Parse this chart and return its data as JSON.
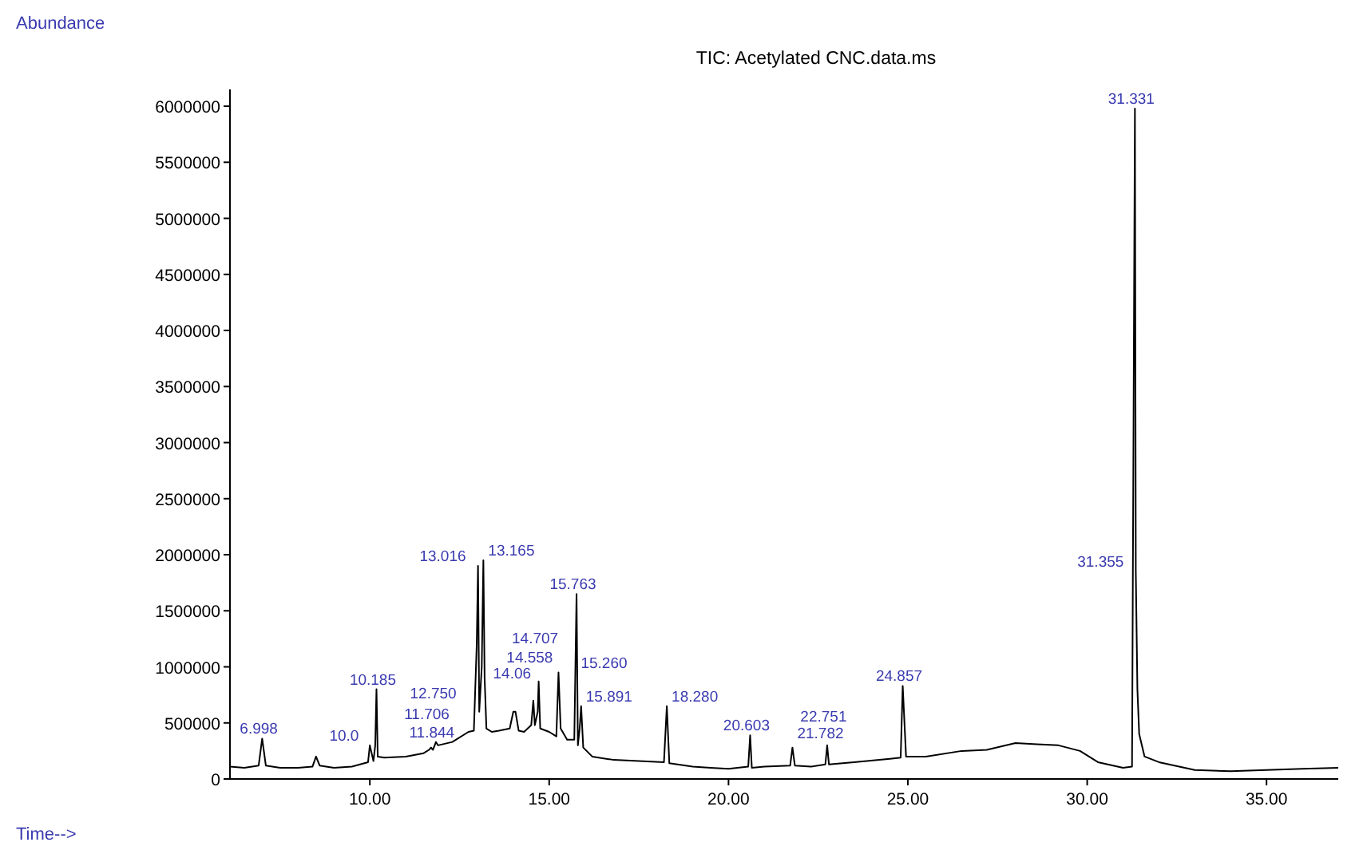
{
  "chart_data": {
    "type": "line",
    "title": "TIC: Acetylated CNC.data.ms",
    "xlabel": "Time-->",
    "ylabel": "Abundance",
    "x": [
      6.1,
      6.5,
      6.9,
      6.998,
      7.1,
      7.5,
      8.0,
      8.4,
      8.5,
      8.6,
      9.0,
      9.5,
      9.95,
      10.0,
      10.1,
      10.15,
      10.185,
      10.22,
      10.4,
      11.0,
      11.5,
      11.65,
      11.706,
      11.76,
      11.844,
      11.9,
      12.3,
      12.75,
      12.9,
      12.98,
      13.016,
      13.05,
      13.12,
      13.165,
      13.2,
      13.25,
      13.4,
      13.6,
      13.9,
      14.0,
      14.06,
      14.15,
      14.3,
      14.5,
      14.558,
      14.6,
      14.68,
      14.707,
      14.75,
      15.0,
      15.2,
      15.26,
      15.32,
      15.5,
      15.7,
      15.763,
      15.8,
      15.85,
      15.891,
      15.95,
      16.2,
      16.8,
      17.5,
      18.2,
      18.28,
      18.35,
      19.0,
      19.5,
      20.0,
      20.55,
      20.603,
      20.65,
      21.0,
      21.72,
      21.782,
      21.85,
      22.3,
      22.7,
      22.751,
      22.8,
      23.5,
      24.5,
      24.8,
      24.857,
      24.95,
      25.5,
      26.5,
      27.2,
      28.0,
      28.6,
      29.2,
      29.8,
      30.3,
      31.0,
      31.25,
      31.331,
      31.355,
      31.4,
      31.45,
      31.6,
      32.0,
      33.0,
      34.0,
      35.0,
      36.0,
      37.0
    ],
    "series": [
      {
        "color": "#000000",
        "values": [
          110000,
          100000,
          120000,
          360000,
          120000,
          100000,
          100000,
          110000,
          200000,
          120000,
          100000,
          110000,
          150000,
          300000,
          160000,
          300000,
          800000,
          200000,
          190000,
          200000,
          230000,
          260000,
          280000,
          260000,
          330000,
          300000,
          330000,
          420000,
          430000,
          1200000,
          1900000,
          600000,
          1000000,
          1950000,
          900000,
          450000,
          420000,
          430000,
          450000,
          600000,
          600000,
          430000,
          420000,
          480000,
          700000,
          480000,
          600000,
          870000,
          450000,
          420000,
          380000,
          950000,
          450000,
          350000,
          350000,
          1650000,
          300000,
          450000,
          650000,
          280000,
          200000,
          170000,
          160000,
          150000,
          650000,
          140000,
          110000,
          100000,
          90000,
          110000,
          390000,
          100000,
          110000,
          120000,
          280000,
          120000,
          110000,
          130000,
          300000,
          130000,
          150000,
          180000,
          190000,
          830000,
          200000,
          200000,
          250000,
          260000,
          320000,
          310000,
          300000,
          250000,
          150000,
          100000,
          110000,
          5980000,
          1850000,
          800000,
          400000,
          200000,
          150000,
          80000,
          70000,
          80000,
          90000,
          100000
        ]
      }
    ],
    "xlim": [
      6.1,
      37
    ],
    "ylim": [
      0,
      6150000
    ],
    "xticks": [
      {
        "value": 10,
        "label": "10.00"
      },
      {
        "value": 15,
        "label": "15.00"
      },
      {
        "value": 20,
        "label": "20.00"
      },
      {
        "value": 25,
        "label": "25.00"
      },
      {
        "value": 30,
        "label": "30.00"
      },
      {
        "value": 35,
        "label": "35.00"
      }
    ],
    "yticks": [
      0,
      500000,
      1000000,
      1500000,
      2000000,
      2500000,
      3000000,
      3500000,
      4000000,
      4500000,
      5000000,
      5500000,
      6000000
    ],
    "grid": false,
    "marker": "none",
    "line_style": "solid",
    "annotations": [
      {
        "text": "6.998",
        "x": 6.998,
        "y": 360000
      },
      {
        "text": "10.0",
        "x": 10.0,
        "y": 300000
      },
      {
        "text": "10.185",
        "x": 10.185,
        "y": 800000
      },
      {
        "text": "11.844",
        "x": 11.844,
        "y": 330000
      },
      {
        "text": "11.706",
        "x": 11.706,
        "y": 280000
      },
      {
        "text": "12.750",
        "x": 12.75,
        "y": 420000
      },
      {
        "text": "13.016",
        "x": 13.016,
        "y": 1900000
      },
      {
        "text": "13.165",
        "x": 13.165,
        "y": 1950000
      },
      {
        "text": "14.06",
        "x": 14.06,
        "y": 600000
      },
      {
        "text": "14.558",
        "x": 14.558,
        "y": 700000
      },
      {
        "text": "14.707",
        "x": 14.707,
        "y": 870000
      },
      {
        "text": "15.260",
        "x": 15.26,
        "y": 950000
      },
      {
        "text": "15.763",
        "x": 15.763,
        "y": 1650000
      },
      {
        "text": "15.891",
        "x": 15.891,
        "y": 650000
      },
      {
        "text": "18.280",
        "x": 18.28,
        "y": 650000
      },
      {
        "text": "20.603",
        "x": 20.603,
        "y": 390000
      },
      {
        "text": "21.782",
        "x": 21.782,
        "y": 280000
      },
      {
        "text": "22.751",
        "x": 22.751,
        "y": 300000
      },
      {
        "text": "24.857",
        "x": 24.857,
        "y": 830000
      },
      {
        "text": "31.331",
        "x": 31.331,
        "y": 5980000
      },
      {
        "text": "31.355",
        "x": 31.355,
        "y": 1850000
      }
    ]
  }
}
